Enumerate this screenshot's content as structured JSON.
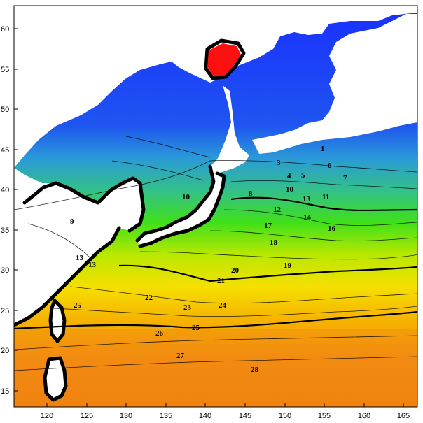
{
  "map": {
    "x_ticks": [
      "120",
      "125",
      "130",
      "135",
      "140",
      "145",
      "150",
      "155",
      "160",
      "165"
    ],
    "y_ticks": [
      "60",
      "55",
      "50",
      "45",
      "40",
      "35",
      "30",
      "25",
      "20",
      "15"
    ],
    "contour_labels": [
      {
        "text": "1"
      },
      {
        "text": "3"
      },
      {
        "text": "4"
      },
      {
        "text": "5"
      },
      {
        "text": "6"
      },
      {
        "text": "7"
      },
      {
        "text": "8"
      },
      {
        "text": "9"
      },
      {
        "text": "10"
      },
      {
        "text": "10"
      },
      {
        "text": "11"
      },
      {
        "text": "12"
      },
      {
        "text": "13"
      },
      {
        "text": "13"
      },
      {
        "text": "13"
      },
      {
        "text": "14"
      },
      {
        "text": "16"
      },
      {
        "text": "17"
      },
      {
        "text": "18"
      },
      {
        "text": "19"
      },
      {
        "text": "20"
      },
      {
        "text": "21"
      },
      {
        "text": "22"
      },
      {
        "text": "23"
      },
      {
        "text": "24"
      },
      {
        "text": "25"
      },
      {
        "text": "25"
      },
      {
        "text": "26"
      },
      {
        "text": "27"
      },
      {
        "text": "28"
      }
    ],
    "colors": {
      "cold": "#1e3cff",
      "cool": "#2f8fe0",
      "mild": "#35c26a",
      "green": "#3fe01a",
      "yellow": "#f0e000",
      "warm": "#f5a800",
      "hot": "#f28a10",
      "extreme": "#ff1010",
      "land": "#ffffff"
    }
  }
}
